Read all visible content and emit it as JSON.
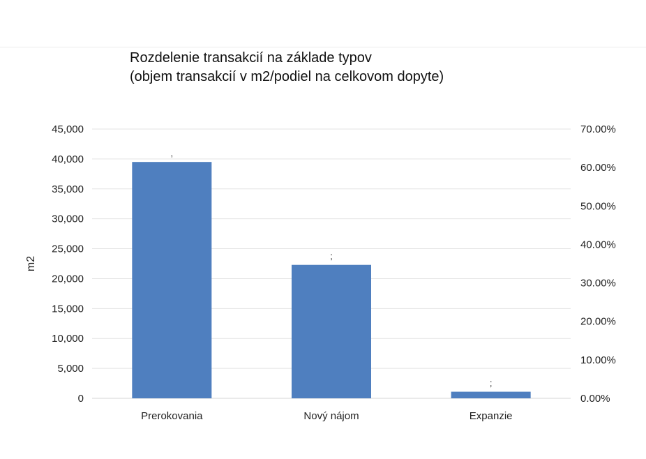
{
  "chart_data": {
    "type": "bar",
    "title": "Rozdelenie transakcií na základe typov",
    "subtitle": "(objem transakcií v m2/podiel na celkovom dopyte)",
    "categories": [
      "Prerokovania",
      "Nový nájom",
      "Expanzie"
    ],
    "values": [
      39500,
      22300,
      1100
    ],
    "data_labels": [
      ",",
      ";",
      ";"
    ],
    "ylabel": "m2",
    "xlabel": "",
    "ylim": [
      0,
      45000
    ],
    "yticks": [
      "0",
      "5,000",
      "10,000",
      "15,000",
      "20,000",
      "25,000",
      "30,000",
      "35,000",
      "40,000",
      "45,000"
    ],
    "y2lim": [
      0,
      0.7
    ],
    "y2ticks": [
      "0.00%",
      "10.00%",
      "20.00%",
      "30.00%",
      "40.00%",
      "50.00%",
      "60.00%",
      "70.00%"
    ],
    "bar_color": "#4f7fbf",
    "grid": true,
    "legend": "none"
  }
}
